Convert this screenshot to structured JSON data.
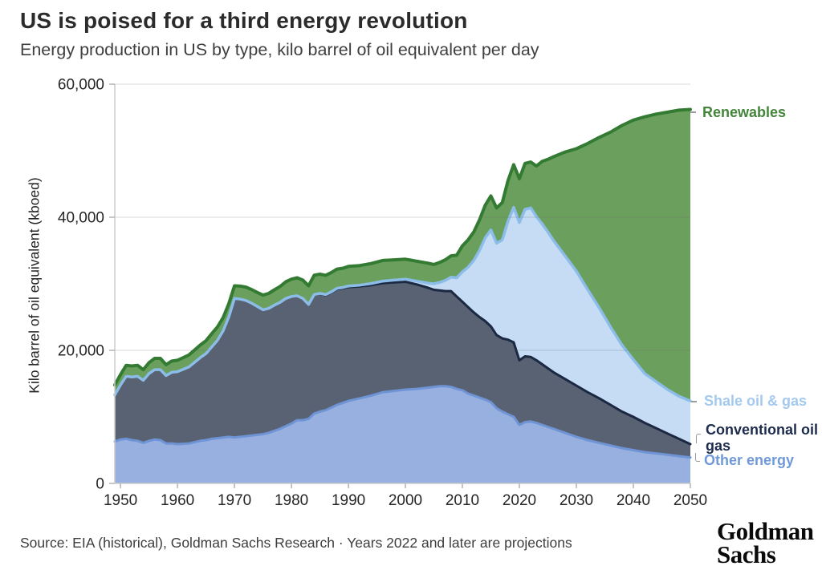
{
  "header": {
    "title": "US is poised for a third energy revolution",
    "subtitle": "Energy production in US by type, kilo barrel of oil equivalent per day"
  },
  "footer": {
    "source": "Source: EIA (historical), Goldman Sachs Research · Years 2022 and later are projections",
    "logo_line1": "Goldman",
    "logo_line2": "Sachs"
  },
  "chart_data": {
    "type": "area",
    "stacked": true,
    "title": "US is poised for a third energy revolution",
    "subtitle": "Energy production in US by type, kilo barrel of oil equivalent per day",
    "xlabel": "",
    "ylabel": "Kilo barrel of oil equivalent (kboed)",
    "unit": "kboed",
    "xlim": [
      1949,
      2050
    ],
    "ylim": [
      0,
      60000
    ],
    "grid": "horizontal",
    "legend_position": "right",
    "projection_note": "Years 2022 and later are projections",
    "x_tick_values": [
      1950,
      1960,
      1970,
      1980,
      1990,
      2000,
      2010,
      2020,
      2030,
      2040,
      2050
    ],
    "x_tick_labels": [
      "1950",
      "1960",
      "1970",
      "1980",
      "1990",
      "2000",
      "2010",
      "2020",
      "2030",
      "2040",
      "2050"
    ],
    "y_tick_values": [
      0,
      20000,
      40000,
      60000
    ],
    "y_tick_labels": [
      "0",
      "20,000",
      "40,000",
      "60,000"
    ],
    "years": [
      1949,
      1950,
      1951,
      1952,
      1953,
      1954,
      1955,
      1956,
      1957,
      1958,
      1959,
      1960,
      1962,
      1964,
      1965,
      1966,
      1967,
      1968,
      1969,
      1970,
      1971,
      1972,
      1973,
      1974,
      1975,
      1976,
      1977,
      1978,
      1979,
      1980,
      1981,
      1982,
      1983,
      1984,
      1985,
      1986,
      1987,
      1988,
      1989,
      1990,
      1992,
      1994,
      1996,
      1998,
      2000,
      2002,
      2004,
      2005,
      2006,
      2007,
      2008,
      2009,
      2010,
      2011,
      2012,
      2013,
      2014,
      2015,
      2016,
      2017,
      2018,
      2019,
      2020,
      2021,
      2022,
      2023,
      2024,
      2025,
      2026,
      2028,
      2030,
      2032,
      2034,
      2036,
      2038,
      2040,
      2042,
      2044,
      2046,
      2048,
      2050
    ],
    "series": [
      {
        "name": "Other energy",
        "fill": "#97b0e0",
        "stroke": "#6f94d5",
        "label_color": "#6f99d8",
        "values": [
          6300,
          6600,
          6700,
          6500,
          6400,
          6100,
          6400,
          6600,
          6500,
          6000,
          6000,
          5900,
          6000,
          6400,
          6500,
          6700,
          6800,
          6900,
          7000,
          6900,
          7000,
          7100,
          7200,
          7300,
          7400,
          7600,
          7900,
          8200,
          8600,
          9000,
          9500,
          9500,
          9700,
          10500,
          10800,
          11000,
          11400,
          11800,
          12100,
          12400,
          12800,
          13200,
          13700,
          13900,
          14100,
          14200,
          14400,
          14500,
          14600,
          14600,
          14500,
          14200,
          14000,
          13500,
          13200,
          12900,
          12600,
          12200,
          11300,
          10800,
          10400,
          10000,
          8800,
          9200,
          9300,
          9100,
          8800,
          8500,
          8200,
          7600,
          7000,
          6500,
          6100,
          5700,
          5300,
          5000,
          4700,
          4500,
          4300,
          4100,
          3900
        ]
      },
      {
        "name": "Conventional oil & gas",
        "fill": "#596273",
        "stroke": "#1b2842",
        "label_color": "#1d2c4e",
        "values": [
          7000,
          8200,
          9400,
          9500,
          9700,
          9400,
          10100,
          10500,
          10600,
          10200,
          10700,
          10900,
          11500,
          12500,
          13000,
          13800,
          14700,
          16000,
          18000,
          20900,
          20700,
          20400,
          19900,
          19300,
          18700,
          18700,
          18900,
          19000,
          19200,
          19100,
          18700,
          18300,
          17200,
          17900,
          17700,
          17300,
          17300,
          17400,
          17200,
          17100,
          16800,
          16600,
          16400,
          16300,
          16200,
          15700,
          15000,
          14600,
          14400,
          14300,
          14400,
          13900,
          13300,
          13000,
          12500,
          12100,
          11800,
          11400,
          11000,
          11000,
          11200,
          11200,
          9700,
          9900,
          9700,
          9400,
          9100,
          8800,
          8500,
          8100,
          7700,
          7200,
          6700,
          6100,
          5500,
          5000,
          4400,
          3800,
          3200,
          2600,
          2000
        ]
      },
      {
        "name": "Shale oil & gas",
        "fill": "#c5dcf4",
        "stroke": "#8cbde9",
        "label_color": "#a4c9ef",
        "values": [
          0,
          0,
          0,
          0,
          0,
          0,
          0,
          0,
          0,
          0,
          0,
          0,
          0,
          0,
          0,
          0,
          0,
          0,
          0,
          0,
          0,
          0,
          0,
          0,
          0,
          0,
          0,
          0,
          0,
          0,
          0,
          0,
          0,
          0,
          50,
          80,
          100,
          120,
          140,
          160,
          200,
          250,
          300,
          350,
          400,
          500,
          700,
          900,
          1200,
          1600,
          2100,
          2800,
          4500,
          6000,
          7800,
          10000,
          12500,
          14500,
          13800,
          14800,
          17800,
          20300,
          20700,
          22100,
          22400,
          21600,
          21100,
          20500,
          19800,
          18500,
          17200,
          15400,
          13600,
          11700,
          10000,
          8600,
          7400,
          7000,
          6600,
          6400,
          6500
        ]
      },
      {
        "name": "Renewables",
        "fill": "#6b9f5e",
        "stroke": "#337a33",
        "label_color": "#45853b",
        "values": [
          1500,
          1550,
          1650,
          1650,
          1650,
          1600,
          1650,
          1700,
          1700,
          1650,
          1700,
          1700,
          1800,
          1900,
          1950,
          2000,
          2000,
          2000,
          2000,
          1900,
          1950,
          2000,
          2050,
          2100,
          2200,
          2250,
          2300,
          2400,
          2500,
          2600,
          2700,
          2750,
          2800,
          2900,
          2900,
          2900,
          2900,
          2900,
          2900,
          2950,
          2950,
          3000,
          3100,
          3050,
          3000,
          3000,
          3000,
          2900,
          3000,
          3100,
          3200,
          3400,
          3900,
          4100,
          4300,
          4600,
          4900,
          5100,
          5300,
          5600,
          6100,
          6400,
          6600,
          6900,
          6900,
          7600,
          9400,
          10900,
          12600,
          15600,
          18400,
          22000,
          25600,
          29300,
          33000,
          36000,
          38600,
          40200,
          41700,
          43000,
          43800
        ]
      }
    ],
    "colors": {
      "gridline": "#d4d4d4",
      "axis": "#cccccc",
      "tick": "#b3b3b3",
      "title_text": "#2b2b2b",
      "body_text": "#3f3f3f"
    }
  }
}
